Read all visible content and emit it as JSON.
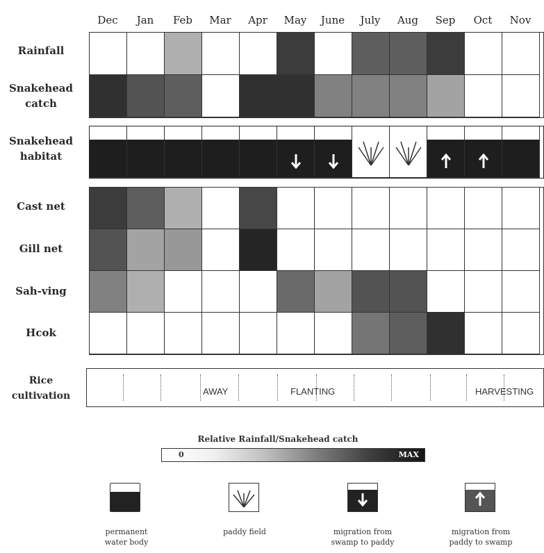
{
  "months": [
    "Dec",
    "Jan",
    "Feb",
    "Mar",
    "Apr",
    "May",
    "June",
    "July",
    "Aug",
    "Sep",
    "Oct",
    "Nov"
  ],
  "rows": {
    "rainfall": {
      "label": "Rainfall",
      "levels": [
        0,
        0,
        0.35,
        0,
        0,
        0.85,
        0,
        0.7,
        0.7,
        0.85,
        0,
        0
      ]
    },
    "snakehead_catch": {
      "label": "Snakehead\ncatch",
      "levels": [
        0.9,
        0.75,
        0.7,
        0,
        0.9,
        0.9,
        0.55,
        0.55,
        0.55,
        0.4,
        0,
        0
      ]
    },
    "habitat": {
      "label": "Snakehead\nhabitat",
      "states": [
        "permanent",
        "permanent",
        "permanent",
        "permanent",
        "permanent",
        "to_paddy",
        "to_paddy",
        "paddy",
        "paddy",
        "to_swamp",
        "to_swamp",
        "permanent"
      ]
    },
    "cast_net": {
      "label": "Cast net",
      "levels": [
        0.85,
        0.7,
        0.35,
        0,
        0.8,
        0,
        0,
        0,
        0,
        0,
        0,
        0
      ]
    },
    "gill_net": {
      "label": "Gill net",
      "levels": [
        0.75,
        0.4,
        0.45,
        0,
        0.95,
        0,
        0,
        0,
        0,
        0,
        0,
        0
      ]
    },
    "sah_ving": {
      "label": "Sah-ving",
      "levels": [
        0.55,
        0.35,
        0,
        0,
        0,
        0.65,
        0.4,
        0.75,
        0.75,
        0,
        0,
        0
      ]
    },
    "hook": {
      "label": "Hcok",
      "levels": [
        0,
        0,
        0,
        0,
        0,
        0,
        0,
        0.6,
        0.7,
        0.9,
        0,
        0
      ]
    }
  },
  "rice": {
    "label": "Rice\ncultivation",
    "away": "AWAY",
    "planting": "FLANTING",
    "harvesting": "HARVESTING"
  },
  "legend": {
    "title": "Relative Rainfall/Snakehead catch",
    "min_label": "0",
    "max_label": "MAX"
  },
  "key": [
    {
      "icon": "permanent-water-body-icon",
      "label": "permanent\nwater body"
    },
    {
      "icon": "paddy-field-icon",
      "label": "paddy field"
    },
    {
      "icon": "migration-swamp-to-paddy-icon",
      "label": "migration from\nswamp to paddy"
    },
    {
      "icon": "migration-paddy-to-swamp-icon",
      "label": "migration from\npaddy to swamp"
    }
  ]
}
